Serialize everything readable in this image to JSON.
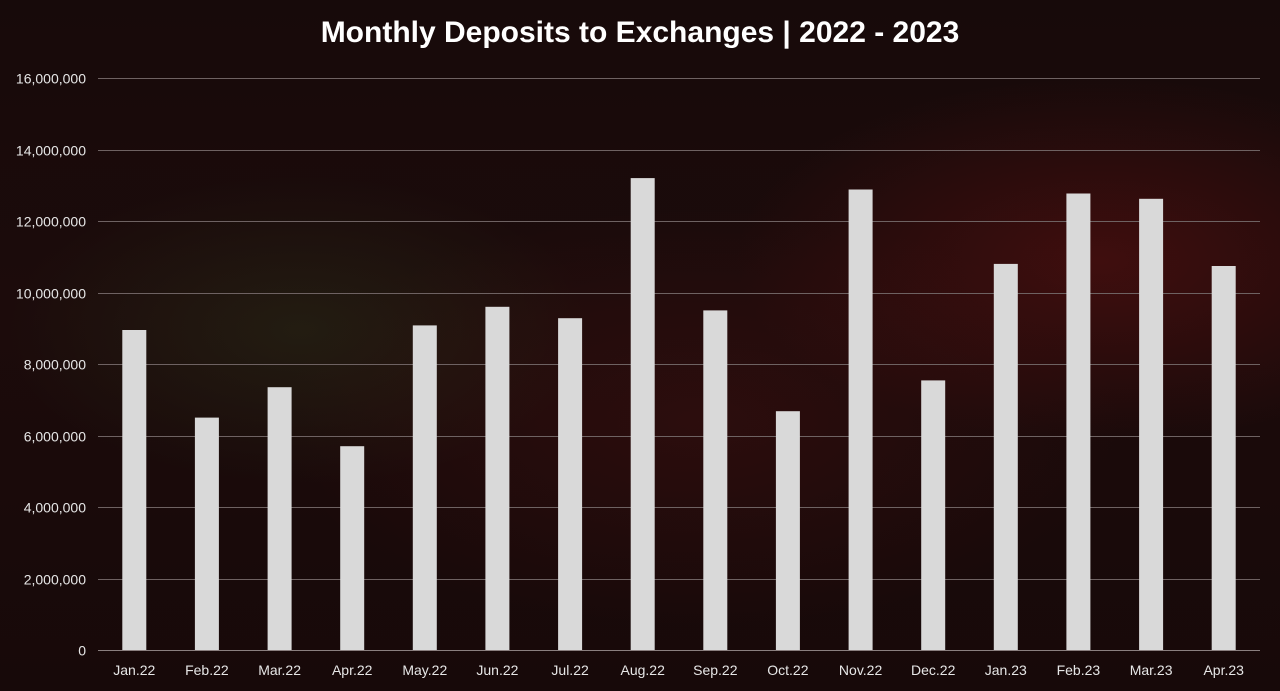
{
  "chart_data": {
    "type": "bar",
    "title": "Monthly Deposits to Exchanges | 2022 - 2023",
    "xlabel": "",
    "ylabel": "",
    "categories": [
      "Jan.22",
      "Feb.22",
      "Mar.22",
      "Apr.22",
      "May.22",
      "Jun.22",
      "Jul.22",
      "Aug.22",
      "Sep.22",
      "Oct.22",
      "Nov.22",
      "Dec.22",
      "Jan.23",
      "Feb.23",
      "Mar.23",
      "Apr.23"
    ],
    "values": [
      8950000,
      6500000,
      7350000,
      5700000,
      9080000,
      9600000,
      9280000,
      13200000,
      9500000,
      6680000,
      12880000,
      7540000,
      10800000,
      12770000,
      12620000,
      10740000
    ],
    "ylim": [
      0,
      16000000
    ],
    "yticks": [
      0,
      2000000,
      4000000,
      6000000,
      8000000,
      10000000,
      12000000,
      14000000,
      16000000
    ],
    "ytick_labels": [
      "0",
      "2,000,000",
      "4,000,000",
      "6,000,000",
      "8,000,000",
      "10,000,000",
      "12,000,000",
      "14,000,000",
      "16,000,000"
    ],
    "grid": true,
    "legend": "none",
    "colors": {
      "bar": "#d9d9d9",
      "text": "#ffffff",
      "gridline": "#6e6262",
      "background": "#1a0a0a"
    }
  }
}
